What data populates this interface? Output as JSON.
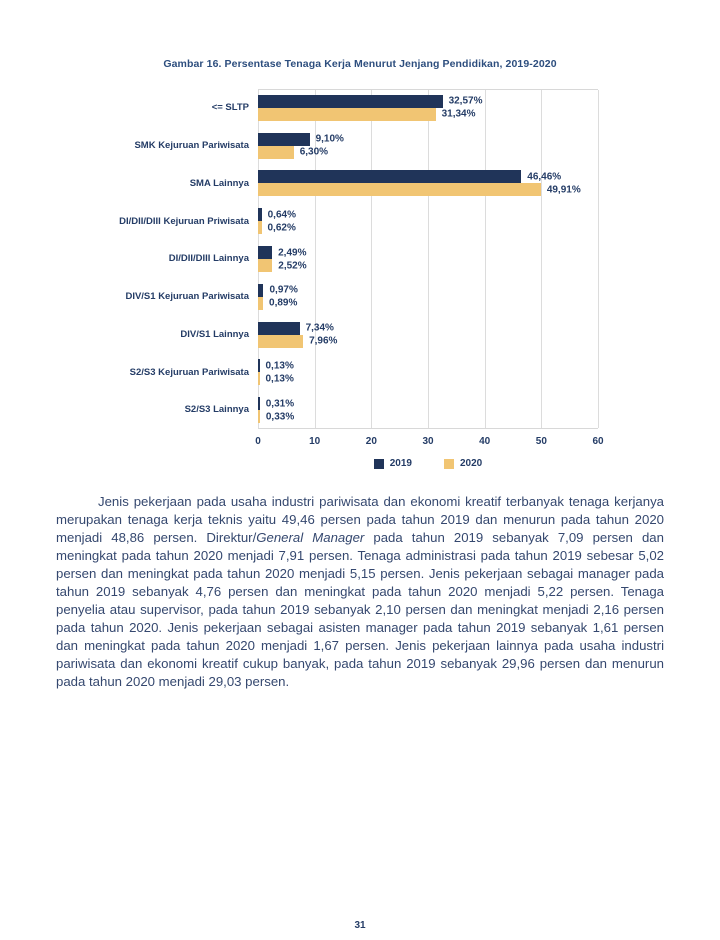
{
  "page": {
    "number": "31"
  },
  "chart_data": {
    "type": "bar",
    "orientation": "horizontal",
    "title": "Gambar 16. Persentase Tenaga Kerja Menurut Jenjang Pendidikan, 2019-2020",
    "categories": [
      "<= SLTP",
      "SMK Kejuruan Pariwisata",
      "SMA Lainnya",
      "DI/DII/DIII Kejuruan Priwisata",
      "DI/DII/DIII Lainnya",
      "DIV/S1 Kejuruan Pariwisata",
      "DIV/S1 Lainnya",
      "S2/S3 Kejuruan Pariwisata",
      "S2/S3 Lainnya"
    ],
    "series": [
      {
        "name": "2019",
        "color": "#203459",
        "values": [
          32.57,
          9.1,
          46.46,
          0.64,
          2.49,
          0.97,
          7.34,
          0.13,
          0.31
        ]
      },
      {
        "name": "2020",
        "color": "#f1c573",
        "values": [
          31.34,
          6.3,
          49.91,
          0.62,
          2.52,
          0.89,
          7.96,
          0.13,
          0.33
        ]
      }
    ],
    "value_label_format": "comma-decimal-percent",
    "x_ticks": [
      0,
      10,
      20,
      30,
      40,
      50,
      60
    ],
    "xlim": [
      0,
      60
    ],
    "xlabel": "",
    "ylabel": "",
    "grid": true,
    "legend_position": "bottom"
  },
  "body": {
    "paragraph": {
      "before": "Jenis pekerjaan pada usaha industri pariwisata dan ekonomi kreatif terbanyak tenaga kerjanya merupakan tenaga kerja teknis yaitu 49,46 persen pada tahun 2019 dan menurun pada tahun 2020 menjadi 48,86 persen. Direktur/",
      "italic": "General Manager",
      "after": " pada tahun 2019 sebanyak 7,09 persen dan meningkat pada tahun 2020 menjadi 7,91 persen. Tenaga administrasi pada tahun 2019 sebesar 5,02 persen dan meningkat pada tahun 2020 menjadi 5,15 persen. Jenis pekerjaan sebagai manager pada tahun 2019 sebanyak 4,76 persen dan meningkat pada tahun 2020 menjadi 5,22 persen. Tenaga penyelia atau supervisor, pada tahun 2019 sebanyak 2,10 persen dan meningkat menjadi 2,16 persen pada tahun 2020. Jenis pekerjaan sebagai asisten manager pada tahun 2019 sebanyak 1,61 persen dan meningkat pada tahun 2020 menjadi 1,67 persen. Jenis pekerjaan lainnya pada usaha industri pariwisata dan ekonomi kreatif cukup banyak, pada tahun 2019 sebanyak 29,96 persen dan menurun pada tahun 2020 menjadi 29,03 persen."
    }
  }
}
